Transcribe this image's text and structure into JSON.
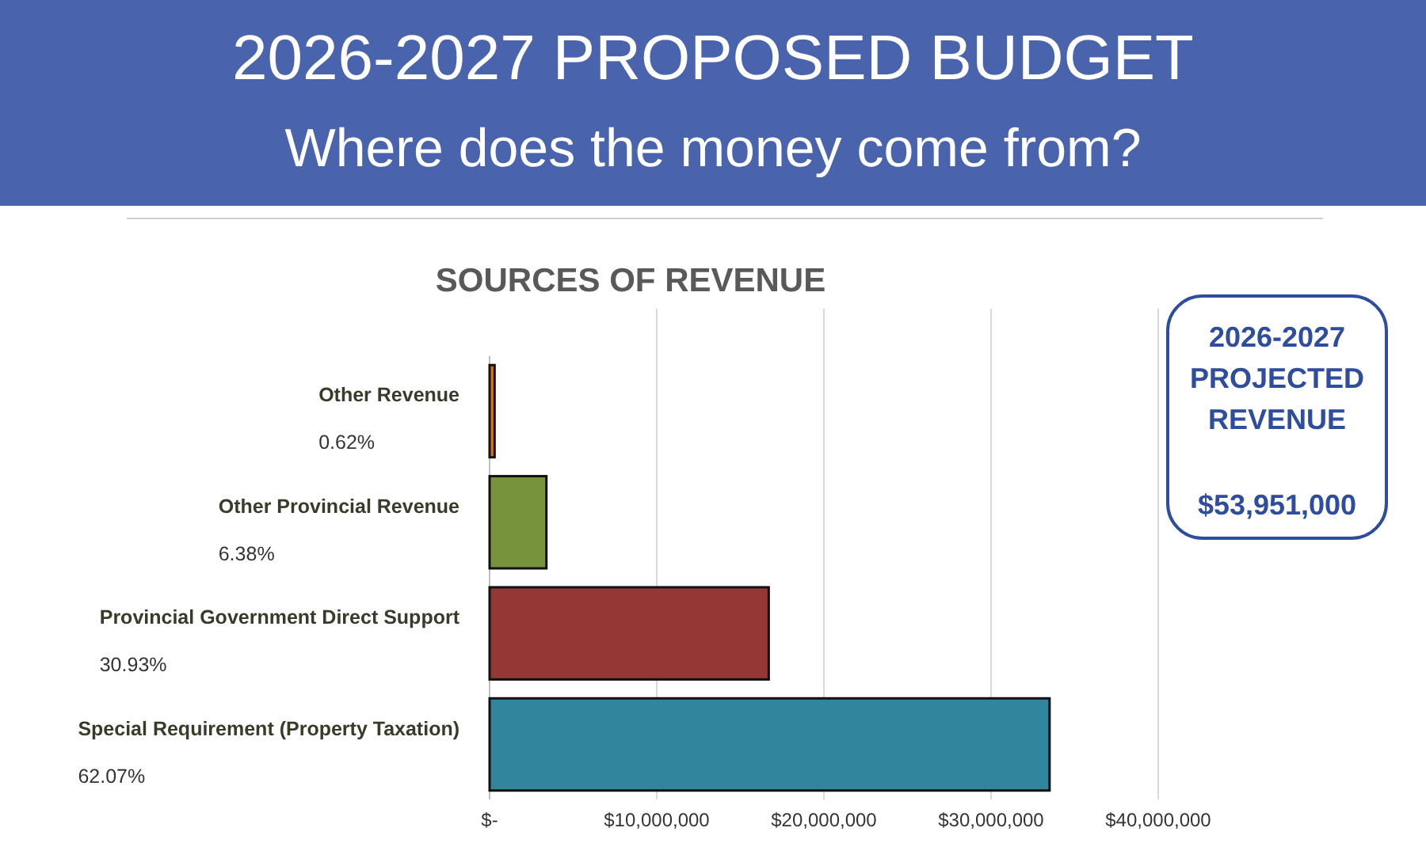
{
  "chart_data": {
    "type": "bar",
    "orientation": "horizontal",
    "title": "2026-2027 PROPOSED BUDGET",
    "subtitle": "Where does the money come from?",
    "annotations": [
      "SOURCES OF REVENUE",
      "2026-2027 PROJECTED REVENUE",
      "$53,951,000",
      "0.62%",
      "6.38%",
      "30.93%",
      "62.07%"
    ],
    "categories": [
      "Other Revenue",
      "Other Provincial Revenue",
      "Provincial Government Direct Support",
      "Special Requirement (Property Taxation)"
    ],
    "values": [
      300000,
      3400000,
      16700000,
      33500000
    ],
    "colors": [
      "#e46c0a",
      "#77933c",
      "#953735",
      "#31859c"
    ],
    "xlim": [
      0,
      40000000
    ],
    "xticks": [
      {
        "value": 0,
        "label": "$-"
      },
      {
        "value": 10000000,
        "label": "$10,000,000"
      },
      {
        "value": 20000000,
        "label": "$20,000,000"
      },
      {
        "value": 30000000,
        "label": "$30,000,000"
      },
      {
        "value": 40000000,
        "label": "$40,000,000"
      }
    ],
    "grid": "x"
  }
}
